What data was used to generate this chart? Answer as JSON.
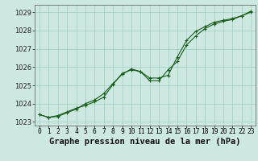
{
  "title": "Graphe pression niveau de la mer (hPa)",
  "x_hours": [
    0,
    1,
    2,
    3,
    4,
    5,
    6,
    7,
    8,
    9,
    10,
    11,
    12,
    13,
    14,
    15,
    16,
    17,
    18,
    19,
    20,
    21,
    22,
    23
  ],
  "series1": [
    1023.4,
    1023.25,
    1023.35,
    1023.55,
    1023.75,
    1023.9,
    1024.1,
    1024.35,
    1025.05,
    1025.65,
    1025.85,
    1025.75,
    1025.4,
    1025.4,
    1025.55,
    1026.55,
    1027.45,
    1027.95,
    1028.2,
    1028.45,
    1028.55,
    1028.65,
    1028.8,
    1029.0
  ],
  "series2": [
    1023.4,
    1023.25,
    1023.3,
    1023.5,
    1023.7,
    1024.0,
    1024.2,
    1024.55,
    1025.1,
    1025.6,
    1025.9,
    1025.75,
    1025.25,
    1025.25,
    1025.85,
    1026.3,
    1027.2,
    1027.7,
    1028.1,
    1028.35,
    1028.5,
    1028.6,
    1028.8,
    1029.05
  ],
  "ylim": [
    1022.8,
    1029.4
  ],
  "yticks": [
    1023,
    1024,
    1025,
    1026,
    1027,
    1028,
    1029
  ],
  "line_color": "#1a5c1a",
  "bg_color": "#cce8e0",
  "grid_color": "#9ecfc0",
  "title_fontsize": 7.5,
  "tick_fontsize": 6.0,
  "marker_size": 3.0
}
